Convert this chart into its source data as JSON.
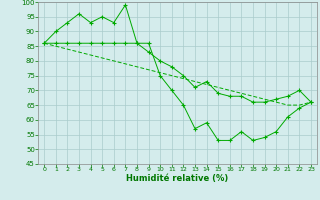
{
  "line_zigzag": [
    86,
    90,
    93,
    96,
    93,
    95,
    93,
    99,
    86,
    86,
    75,
    70,
    65,
    57,
    59,
    53,
    53,
    56,
    53,
    54,
    56,
    61,
    64,
    66
  ],
  "line_mid": [
    86,
    86,
    86,
    86,
    86,
    86,
    86,
    86,
    86,
    83,
    80,
    78,
    75,
    71,
    73,
    69,
    68,
    68,
    66,
    66,
    67,
    68,
    70,
    66
  ],
  "line_trend": [
    86,
    85,
    84,
    83,
    82,
    81,
    80,
    79,
    78,
    77,
    76,
    75,
    74,
    73,
    72,
    71,
    70,
    69,
    68,
    67,
    66,
    65,
    65,
    66
  ],
  "x": [
    0,
    1,
    2,
    3,
    4,
    5,
    6,
    7,
    8,
    9,
    10,
    11,
    12,
    13,
    14,
    15,
    16,
    17,
    18,
    19,
    20,
    21,
    22,
    23
  ],
  "xlabel": "Humidité relative (%)",
  "ylim": [
    45,
    100
  ],
  "xlim_min": -0.5,
  "xlim_max": 23.5,
  "yticks": [
    45,
    50,
    55,
    60,
    65,
    70,
    75,
    80,
    85,
    90,
    95,
    100
  ],
  "xticks": [
    0,
    1,
    2,
    3,
    4,
    5,
    6,
    7,
    8,
    9,
    10,
    11,
    12,
    13,
    14,
    15,
    16,
    17,
    18,
    19,
    20,
    21,
    22,
    23
  ],
  "line_color": "#00aa00",
  "bg_color": "#d4ecec",
  "grid_color": "#aacccc",
  "label_color": "#007700"
}
